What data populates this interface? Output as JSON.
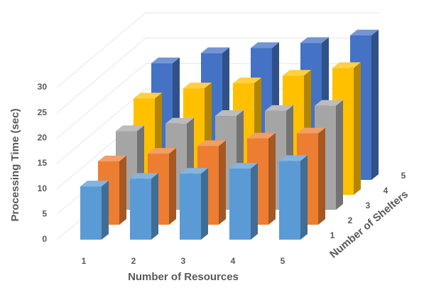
{
  "chart_data": {
    "type": "bar3d",
    "y_label": "Processing Time (sec)",
    "x_label": "Number of Resources",
    "z_label": "Number of Shelters",
    "categories": [
      "1",
      "2",
      "3",
      "4",
      "5"
    ],
    "series": [
      {
        "name": "1",
        "color": "#5b9bd5",
        "values": [
          10.5,
          12,
          13,
          14,
          15.5
        ]
      },
      {
        "name": "2",
        "color": "#ed7d31",
        "values": [
          12.5,
          14,
          15.5,
          17,
          18
        ]
      },
      {
        "name": "3",
        "color": "#a5a5a5",
        "values": [
          15.5,
          17,
          18.5,
          19.5,
          20.5
        ]
      },
      {
        "name": "4",
        "color": "#ffc000",
        "values": [
          19,
          21,
          22,
          23.5,
          25
        ]
      },
      {
        "name": "5",
        "color": "#4472c4",
        "values": [
          23,
          25,
          26,
          27,
          28.5
        ]
      }
    ],
    "ylim": [
      0,
      30
    ],
    "yticks": [
      0,
      5,
      10,
      15,
      20,
      25,
      30
    ],
    "grid": true
  }
}
